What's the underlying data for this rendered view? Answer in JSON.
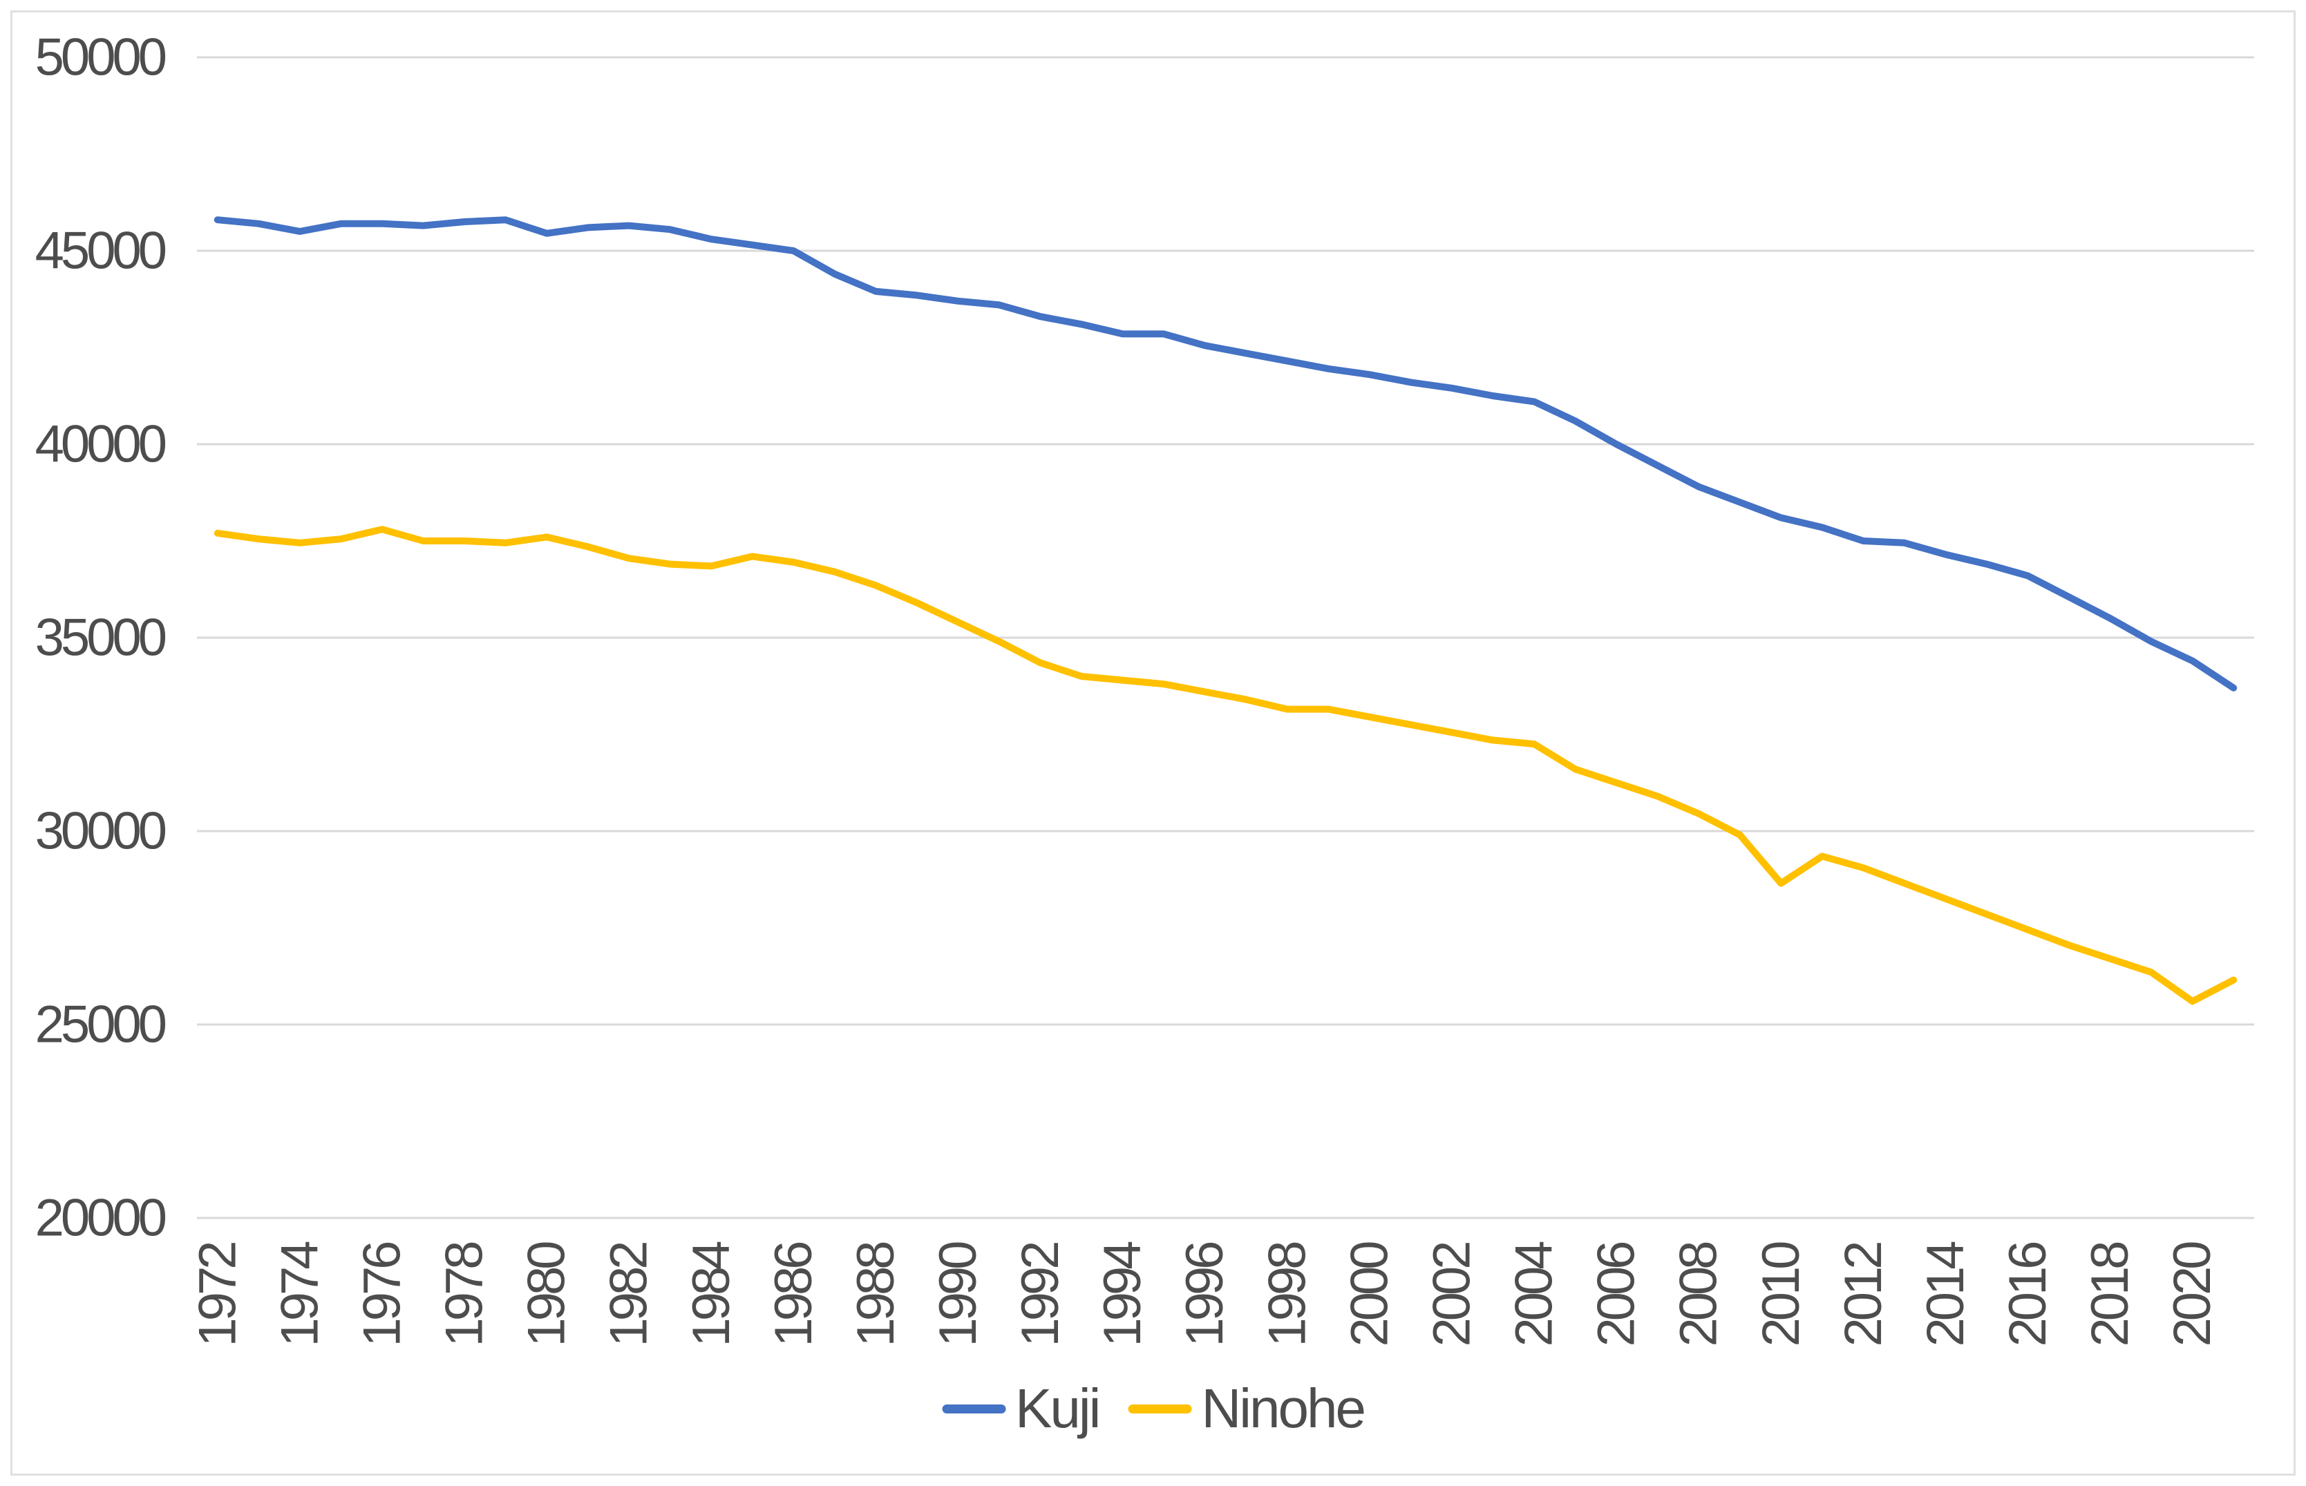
{
  "chart_data": {
    "type": "line",
    "title": "",
    "xlabel": "",
    "ylabel": "",
    "x": [
      1972,
      1973,
      1974,
      1975,
      1976,
      1977,
      1978,
      1979,
      1980,
      1981,
      1982,
      1983,
      1984,
      1985,
      1986,
      1987,
      1988,
      1989,
      1990,
      1991,
      1992,
      1993,
      1994,
      1995,
      1996,
      1997,
      1998,
      1999,
      2000,
      2001,
      2002,
      2003,
      2004,
      2005,
      2006,
      2007,
      2008,
      2009,
      2010,
      2011,
      2012,
      2013,
      2014,
      2015,
      2016,
      2017,
      2018,
      2019,
      2020,
      2021
    ],
    "xtick_labels": [
      "1972",
      "1974",
      "1976",
      "1978",
      "1980",
      "1982",
      "1984",
      "1986",
      "1988",
      "1990",
      "1992",
      "1994",
      "1996",
      "1998",
      "2000",
      "2002",
      "2004",
      "2006",
      "2008",
      "2010",
      "2012",
      "2014",
      "2016",
      "2018",
      "2020"
    ],
    "series": [
      {
        "name": "Kuji",
        "color": "#4472C4",
        "values": [
          45800,
          45700,
          45500,
          45700,
          45700,
          45650,
          45750,
          45800,
          45450,
          45600,
          45650,
          45550,
          45300,
          45150,
          45000,
          44400,
          43950,
          43850,
          43700,
          43600,
          43300,
          43100,
          42850,
          42850,
          42550,
          42350,
          42150,
          41950,
          41800,
          41600,
          41450,
          41250,
          41100,
          40600,
          40000,
          39450,
          38900,
          38500,
          38100,
          37850,
          37500,
          37450,
          37150,
          36900,
          36600,
          36050,
          35500,
          34900,
          34400,
          33700
        ]
      },
      {
        "name": "Ninohe",
        "color": "#FFC000",
        "values": [
          37700,
          37550,
          37450,
          37550,
          37800,
          37500,
          37500,
          37450,
          37600,
          37350,
          37050,
          36900,
          36850,
          37100,
          36950,
          36700,
          36350,
          35900,
          35400,
          34900,
          34350,
          34000,
          33900,
          33800,
          33600,
          33400,
          33150,
          33150,
          32950,
          32750,
          32550,
          32350,
          32250,
          31600,
          31250,
          30900,
          30450,
          29900,
          28650,
          29350,
          29050,
          28650,
          28250,
          27850,
          27450,
          27050,
          26700,
          26350,
          25600,
          26150
        ]
      }
    ],
    "ylim": [
      20000,
      50000
    ],
    "yticks": [
      20000,
      25000,
      30000,
      35000,
      40000,
      45000,
      50000
    ],
    "grid": "horizontal",
    "legend_position": "bottom"
  },
  "colors": {
    "kuji_line": "#4472C4",
    "ninohe_line": "#FFC000",
    "grid": "#D9D9D9",
    "axis_text": "#4D4D4D",
    "frame_border": "#E0E0E0",
    "background": "#FFFFFF"
  }
}
